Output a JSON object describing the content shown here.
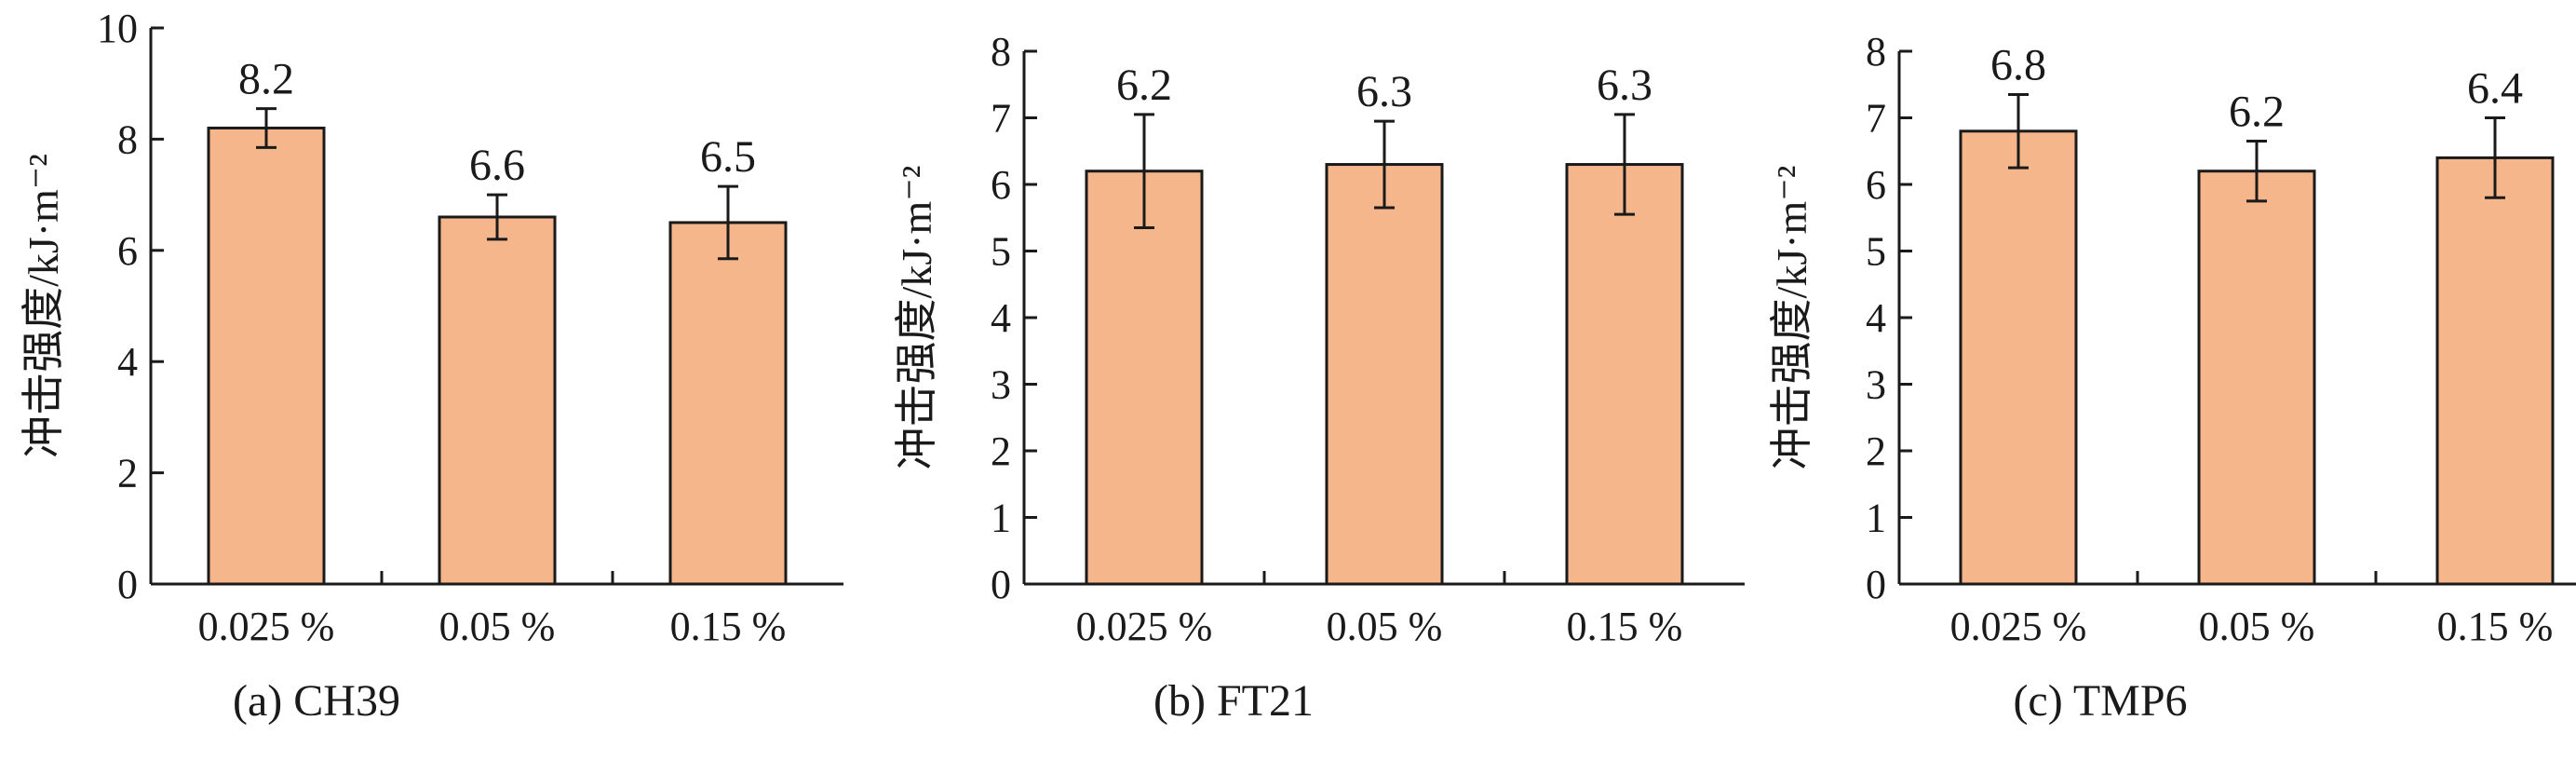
{
  "chart_data": [
    {
      "type": "bar",
      "caption": "(a) CH39",
      "ylabel": "冲击强度/kJ·m⁻²",
      "categories": [
        "0.025 %",
        "0.05 %",
        "0.15 %"
      ],
      "values": [
        8.2,
        6.6,
        6.5
      ],
      "value_labels": [
        "8.2",
        "6.6",
        "6.5"
      ],
      "error": [
        0.35,
        0.4,
        0.65
      ],
      "ylim": [
        0,
        10
      ],
      "yticks": [
        0,
        2,
        4,
        6,
        8,
        10
      ],
      "bar_color": "#f5b68b"
    },
    {
      "type": "bar",
      "caption": "(b) FT21",
      "ylabel": "冲击强度/kJ·m⁻²",
      "categories": [
        "0.025 %",
        "0.05 %",
        "0.15 %"
      ],
      "values": [
        6.2,
        6.3,
        6.3
      ],
      "value_labels": [
        "6.2",
        "6.3",
        "6.3"
      ],
      "error": [
        0.85,
        0.65,
        0.75
      ],
      "ylim": [
        0,
        8
      ],
      "yticks": [
        0,
        1,
        2,
        3,
        4,
        5,
        6,
        7,
        8
      ],
      "bar_color": "#f5b68b"
    },
    {
      "type": "bar",
      "caption": "(c) TMP6",
      "ylabel": "冲击强度/kJ·m⁻²",
      "categories": [
        "0.025 %",
        "0.05 %",
        "0.15 %"
      ],
      "values": [
        6.8,
        6.2,
        6.4
      ],
      "value_labels": [
        "6.8",
        "6.2",
        "6.4"
      ],
      "error": [
        0.55,
        0.45,
        0.6
      ],
      "ylim": [
        0,
        8
      ],
      "yticks": [
        0,
        1,
        2,
        3,
        4,
        5,
        6,
        7,
        8
      ],
      "bar_color": "#f5b68b"
    }
  ]
}
